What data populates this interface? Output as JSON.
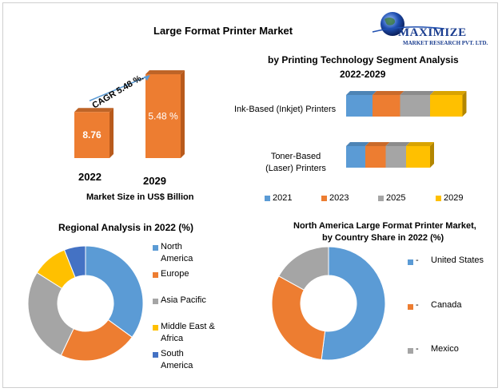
{
  "colors": {
    "blue": "#5b9bd5",
    "orange": "#ed7d31",
    "gray": "#a5a5a5",
    "yellow": "#ffc000",
    "darkblue": "#4472c4",
    "orange_dark": "#b85a1c"
  },
  "logo": {
    "line1": "MAXIMIZE",
    "line2": "MARKET RESEARCH PVT. LTD."
  },
  "chart_data": [
    {
      "type": "bar",
      "title": "Large Format Printer Market",
      "xlabel": "Market Size in US$ Billion",
      "categories": [
        "2022",
        "2029"
      ],
      "value_labels": [
        "8.76",
        "5.48 %"
      ],
      "relative_heights": [
        0.55,
        1.0
      ],
      "annotation": "CAGR 5.48 %."
    },
    {
      "type": "bar",
      "orientation": "horizontal",
      "stacked": true,
      "title": "by Printing Technology Segment Analysis",
      "subtitle": "2022-2029",
      "categories": [
        "Ink-Based (Inkjet) Printers",
        "Toner-Based (Laser) Printers"
      ],
      "series": [
        {
          "name": "2021",
          "values": [
            22,
            16
          ]
        },
        {
          "name": "2023",
          "values": [
            23,
            17
          ]
        },
        {
          "name": "2025",
          "values": [
            25,
            17
          ]
        },
        {
          "name": "2029",
          "values": [
            27,
            20
          ]
        }
      ],
      "legend": "bottom"
    },
    {
      "type": "pie",
      "donut": true,
      "title": "Regional Analysis in 2022 (%)",
      "labels": [
        "North America",
        "Europe",
        "Asia Pacific",
        "Middle East & Africa",
        "South America"
      ],
      "values": [
        35,
        22,
        27,
        10,
        6
      ],
      "legend": "right"
    },
    {
      "type": "pie",
      "donut": true,
      "title": "North America Large Format Printer Market,",
      "subtitle": "by Country Share in 2022 (%)",
      "labels": [
        "United States",
        "Canada",
        "Mexico"
      ],
      "values": [
        52,
        31,
        17
      ],
      "legend": "right"
    }
  ]
}
